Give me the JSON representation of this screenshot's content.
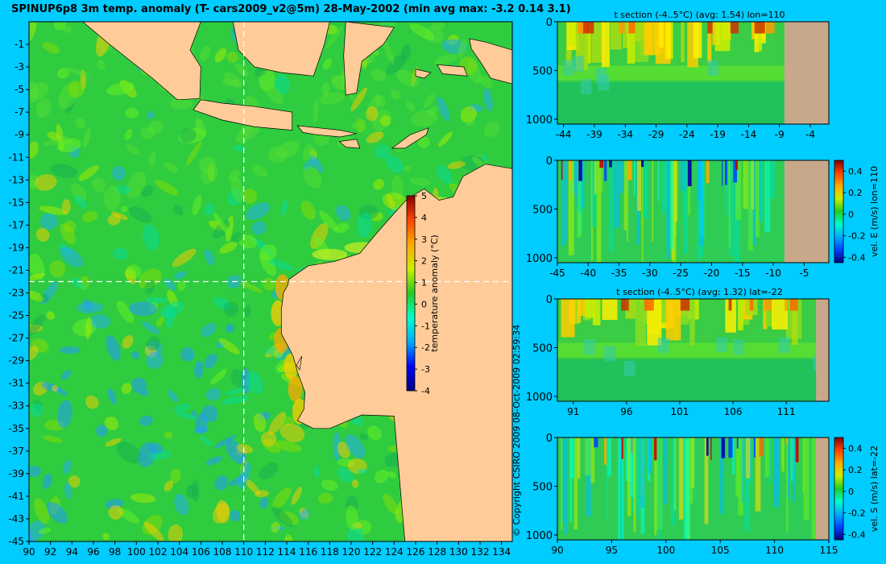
{
  "header": {
    "title": "SPINUP6p8 3m temp. anomaly (T- cars2009_v2@5m) 28-May-2002 (min avg max: -3.2 0.14 3.1)"
  },
  "colors": {
    "background": "#00ccff",
    "land": "#ffcc99",
    "section_land": "#c8a88a"
  },
  "copyright": "© Copyright CSIRO 2009   08-Oct-2009 02:59:34",
  "chart_data": [
    {
      "type": "heatmap",
      "id": "map",
      "title": "",
      "x": [
        90,
        92,
        94,
        96,
        98,
        100,
        102,
        104,
        106,
        108,
        110,
        112,
        114,
        116,
        118,
        120,
        122,
        124,
        126,
        128,
        130,
        132,
        134
      ],
      "y": [
        -1,
        -3,
        -5,
        -7,
        -9,
        -11,
        -13,
        -15,
        -17,
        -19,
        -21,
        -23,
        -25,
        -27,
        -29,
        -31,
        -33,
        -35,
        -37,
        -39,
        -41,
        -43,
        -45
      ],
      "xlim": [
        90,
        135
      ],
      "ylim": [
        -45,
        1
      ],
      "section_lon": 110,
      "section_lat": -22,
      "colorbar": {
        "label": "temperature anomaly (°C)",
        "ticks": [
          5,
          4,
          3,
          2,
          1,
          0,
          -1,
          -2,
          -3,
          -4
        ],
        "range": [
          -4,
          5
        ],
        "colors": [
          "#000080",
          "#0000ff",
          "#00aaff",
          "#00ffcc",
          "#22cc22",
          "#ccee00",
          "#ffaa00",
          "#ff4400",
          "#880000"
        ]
      }
    },
    {
      "type": "heatmap",
      "id": "tsec_lon",
      "title": "t section (-4..5°C) (avg: 1.54) lon=110",
      "x_ticks": [
        -44,
        -39,
        -34,
        -29,
        -24,
        -19,
        -14,
        -9,
        -4
      ],
      "y_ticks": [
        0,
        500,
        1000
      ],
      "xlim": [
        -45,
        -1
      ],
      "ylim": [
        1050,
        0
      ],
      "land_from": -8.2
    },
    {
      "type": "heatmap",
      "id": "vsec_lon",
      "title": "",
      "x_ticks": [
        -45,
        -40,
        -35,
        -30,
        -25,
        -20,
        -15,
        -10,
        -5
      ],
      "y_ticks": [
        0,
        500,
        1000
      ],
      "xlim": [
        -45,
        -1
      ],
      "ylim": [
        1050,
        0
      ],
      "land_from": -8.2,
      "colorbar": {
        "label": "vel. E (m/s) lon=110",
        "ticks": [
          0.4,
          0.2,
          0,
          -0.2,
          -0.4
        ],
        "range": [
          -0.45,
          0.5
        ]
      }
    },
    {
      "type": "heatmap",
      "id": "tsec_lat",
      "title": "t section (-4..5°C) (avg: 1.32) lat=-22",
      "x_ticks": [
        91,
        96,
        101,
        106,
        111
      ],
      "y_ticks": [
        0,
        500,
        1000
      ],
      "xlim": [
        89.5,
        115
      ],
      "ylim": [
        1050,
        0
      ],
      "land_from": 113.8
    },
    {
      "type": "heatmap",
      "id": "vsec_lat",
      "title": "",
      "x_ticks": [
        90,
        95,
        100,
        105,
        110,
        115
      ],
      "y_ticks": [
        0,
        500,
        1000
      ],
      "xlim": [
        90,
        115
      ],
      "ylim": [
        1050,
        0
      ],
      "land_from": 113.8,
      "colorbar": {
        "label": "vel. S (m/s) lat=-22",
        "ticks": [
          0.4,
          0.2,
          0,
          -0.2,
          -0.4
        ],
        "range": [
          -0.45,
          0.5
        ]
      }
    }
  ]
}
